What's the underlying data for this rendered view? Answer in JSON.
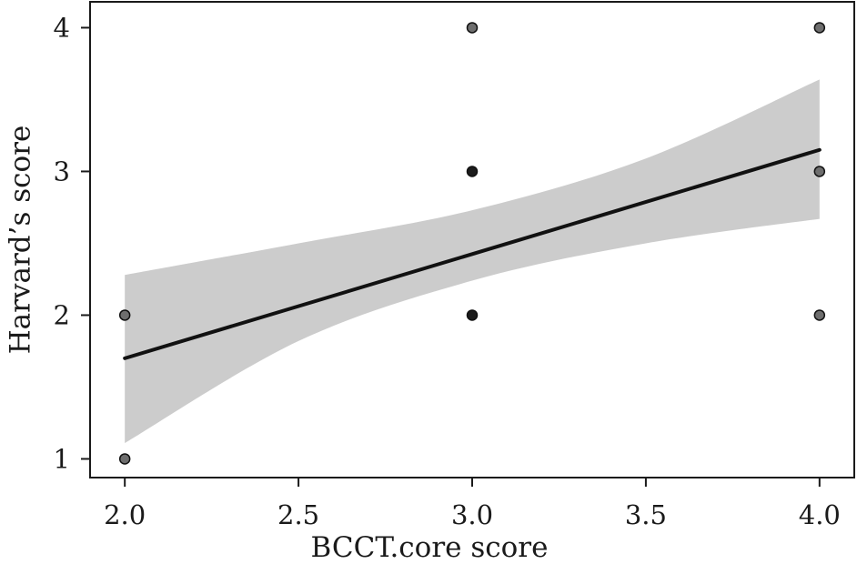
{
  "chart_data": {
    "type": "scatter",
    "title": "",
    "xlabel": "BCCT.core score",
    "ylabel": "Harvard’s score",
    "xlim": [
      1.9,
      4.1
    ],
    "ylim": [
      0.87,
      4.18
    ],
    "x_ticks": [
      2.0,
      2.5,
      3.0,
      3.5,
      4.0
    ],
    "x_tick_labels": [
      "2.0",
      "2.5",
      "3.0",
      "3.5",
      "4.0"
    ],
    "y_ticks": [
      1,
      2,
      3,
      4
    ],
    "y_tick_labels": [
      "1",
      "2",
      "3",
      "4"
    ],
    "grid": false,
    "points": [
      {
        "x": 2,
        "y": 1
      },
      {
        "x": 2,
        "y": 2
      },
      {
        "x": 3,
        "y": 2
      },
      {
        "x": 3,
        "y": 3
      },
      {
        "x": 3,
        "y": 4
      },
      {
        "x": 4,
        "y": 2
      },
      {
        "x": 4,
        "y": 3
      },
      {
        "x": 4,
        "y": 4
      }
    ],
    "point_fill": [
      "#6e6e6e",
      "#6e6e6e",
      "#1c1c1c",
      "#1c1c1c",
      "#6e6e6e",
      "#6e6e6e",
      "#6e6e6e",
      "#6e6e6e"
    ],
    "regression_line": {
      "x": [
        2.0,
        4.0
      ],
      "y": [
        1.7,
        3.15
      ]
    },
    "confidence_band": {
      "x": [
        2.0,
        2.5,
        3.0,
        3.5,
        4.0
      ],
      "lower": [
        1.11,
        1.82,
        2.24,
        2.5,
        2.67
      ],
      "upper": [
        2.28,
        2.5,
        2.73,
        3.09,
        3.64
      ]
    },
    "colors": {
      "line": "#111111",
      "band": "#cccccc",
      "axis": "#1a1a1a",
      "point_stroke": "#111111"
    }
  }
}
